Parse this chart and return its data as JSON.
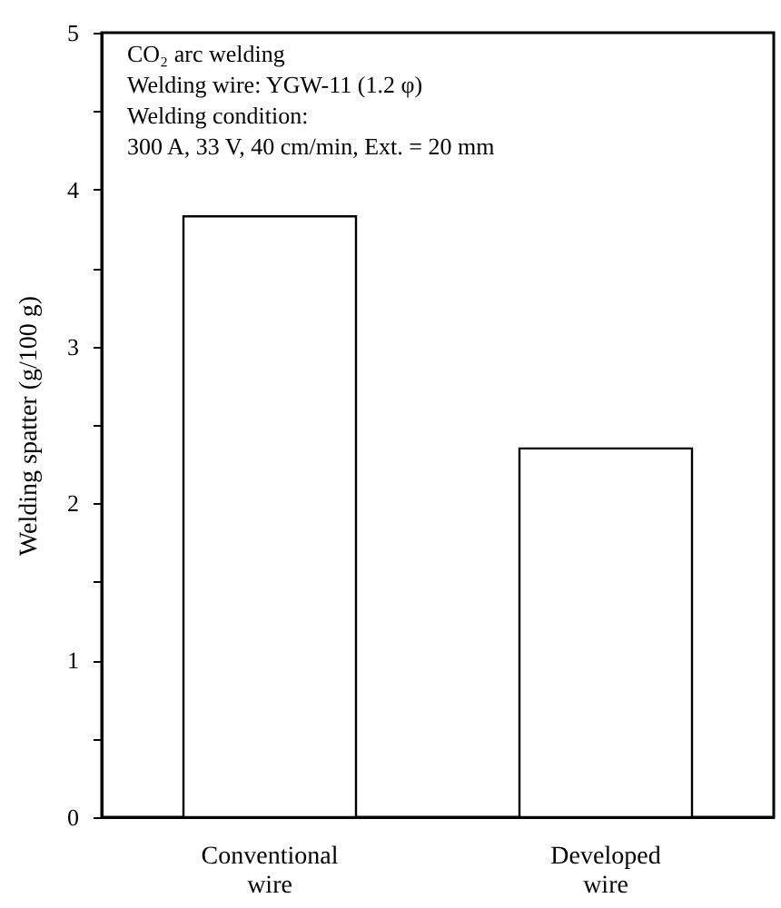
{
  "chart_data": {
    "type": "bar",
    "ylabel": "Welding spatter (g/100 g)",
    "categories": [
      "Conventional wire",
      "Developed wire"
    ],
    "values": [
      3.83,
      2.35
    ],
    "color": "#ffffff",
    "ylim": [
      0,
      5
    ],
    "yticks": [
      0,
      {
        "value": 0.5,
        "label": null
      },
      1,
      {
        "value": 1.5,
        "label": null
      },
      2,
      {
        "value": 2.5,
        "label": null
      },
      3,
      {
        "value": 3.5,
        "label": null
      },
      4,
      {
        "value": 4.5,
        "label": null
      },
      5
    ],
    "grid": false,
    "annotations": [
      "CO₂ arc welding",
      "Welding wire: YGW-11 (1.2 φ)",
      "Welding condition:",
      "    300 A, 33 V, 40 cm/min, Ext. = 20 mm"
    ]
  }
}
